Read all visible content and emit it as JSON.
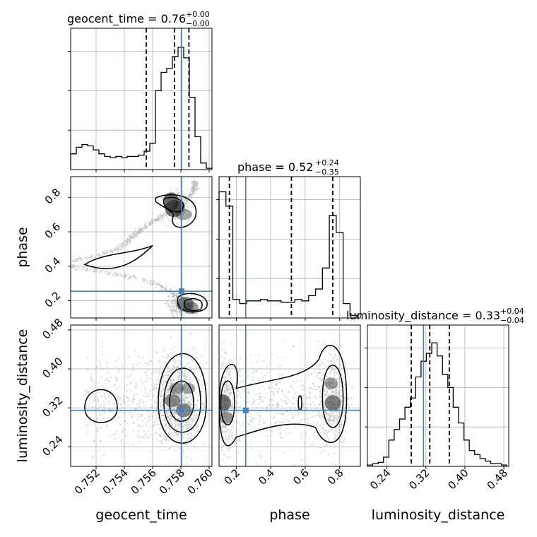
{
  "chart_data": {
    "type": "corner",
    "parameters": [
      {
        "key": "geocent_time",
        "label": "geocent_time",
        "range": [
          0.7502,
          0.7602
        ],
        "ticks": [
          0.752,
          0.754,
          0.756,
          0.758,
          0.76
        ],
        "tick_labels": [
          "0.752",
          "0.754",
          "0.756",
          "0.758",
          "0.760"
        ]
      },
      {
        "key": "phase",
        "label": "phase",
        "range": [
          0.1,
          0.92
        ],
        "ticks": [
          0.2,
          0.4,
          0.6,
          0.8
        ],
        "tick_labels": [
          "0.2",
          "0.4",
          "0.6",
          "0.8"
        ]
      },
      {
        "key": "luminosity_distance",
        "label": "luminosity_distance",
        "range": [
          0.2,
          0.49
        ],
        "ticks": [
          0.24,
          0.32,
          0.4,
          0.48
        ],
        "tick_labels": [
          "0.24",
          "0.32",
          "0.40",
          "0.48"
        ]
      }
    ],
    "titles": [
      {
        "param": "geocent_time",
        "text": "geocent_time = 0.76",
        "sup": "+0.00",
        "sub": "−0.00"
      },
      {
        "param": "phase",
        "text": "phase = 0.52",
        "sup": "+0.24",
        "sub": "−0.35"
      },
      {
        "param": "luminosity_distance",
        "text": "luminosity_distance = 0.33",
        "sup": "+0.04",
        "sub": "−0.04"
      }
    ],
    "truths": {
      "geocent_time": 0.75805,
      "phase": 0.255,
      "luminosity_distance": 0.315
    },
    "quantiles": {
      "geocent_time": [
        0.75555,
        0.75755,
        0.75857
      ],
      "phase": [
        0.16,
        0.52,
        0.76
      ],
      "luminosity_distance": [
        0.29,
        0.328,
        0.368
      ]
    },
    "hist1d": {
      "geocent_time": {
        "edges": [
          0.7502,
          0.7506,
          0.751,
          0.7514,
          0.7518,
          0.7522,
          0.7526,
          0.753,
          0.7534,
          0.7538,
          0.7542,
          0.7546,
          0.755,
          0.7554,
          0.7558,
          0.7562,
          0.7566,
          0.757,
          0.7574,
          0.7578,
          0.7582,
          0.7586,
          0.759,
          0.7594,
          0.7598,
          0.7602
        ],
        "counts": [
          0.12,
          0.17,
          0.19,
          0.18,
          0.15,
          0.12,
          0.1,
          0.09,
          0.1,
          0.09,
          0.1,
          0.1,
          0.11,
          0.14,
          0.2,
          0.6,
          0.74,
          0.77,
          0.86,
          0.93,
          0.85,
          0.55,
          0.25,
          0.05,
          0.01
        ]
      },
      "phase": {
        "edges": [
          0.1,
          0.14,
          0.18,
          0.22,
          0.26,
          0.3,
          0.34,
          0.38,
          0.42,
          0.46,
          0.5,
          0.54,
          0.58,
          0.62,
          0.66,
          0.7,
          0.74,
          0.78,
          0.82,
          0.86,
          0.9
        ],
        "counts": [
          0.96,
          0.85,
          0.14,
          0.11,
          0.13,
          0.13,
          0.14,
          0.13,
          0.13,
          0.12,
          0.12,
          0.14,
          0.13,
          0.17,
          0.22,
          0.38,
          0.78,
          0.65,
          0.11,
          0.02
        ]
      },
      "luminosity_distance": {
        "edges": [
          0.2,
          0.211,
          0.222,
          0.233,
          0.244,
          0.255,
          0.266,
          0.277,
          0.288,
          0.299,
          0.31,
          0.321,
          0.332,
          0.343,
          0.354,
          0.365,
          0.376,
          0.387,
          0.398,
          0.409,
          0.42,
          0.431,
          0.442,
          0.453,
          0.464,
          0.475,
          0.486
        ],
        "counts": [
          0.01,
          0.02,
          0.03,
          0.07,
          0.2,
          0.28,
          0.36,
          0.45,
          0.52,
          0.68,
          0.8,
          0.86,
          0.94,
          0.84,
          0.7,
          0.6,
          0.45,
          0.33,
          0.2,
          0.12,
          0.09,
          0.06,
          0.04,
          0.02,
          0.02,
          0.01
        ]
      }
    },
    "density_blobs": {
      "phase_vs_geocent_time": [
        {
          "x": 0.7573,
          "y": 0.775,
          "w": 0.5,
          "h": 1
        },
        {
          "x": 0.75752,
          "y": 0.735,
          "w": 0.7,
          "h": 0.9
        },
        {
          "x": 0.75785,
          "y": 0.745,
          "w": 0.3,
          "h": 0.5
        },
        {
          "x": 0.7582,
          "y": 0.7,
          "w": 0.6,
          "h": 0.35
        },
        {
          "x": 0.7583,
          "y": 0.18,
          "w": 0.6,
          "h": 0.7
        },
        {
          "x": 0.7587,
          "y": 0.16,
          "w": 0.5,
          "h": 0.5
        }
      ],
      "luminosity_distance_vs_geocent_time": [
        {
          "x": 0.7574,
          "y": 0.335,
          "w": 0.55,
          "h": 0.55
        },
        {
          "x": 0.7582,
          "y": 0.315,
          "w": 0.5,
          "h": 0.6
        },
        {
          "x": 0.7577,
          "y": 0.36,
          "w": 0.4,
          "h": 0.4
        },
        {
          "x": 0.7585,
          "y": 0.36,
          "w": 0.4,
          "h": 0.35
        }
      ],
      "luminosity_distance_vs_phase": [
        {
          "x": 0.12,
          "y": 0.33,
          "w": 0.6,
          "h": 0.9
        },
        {
          "x": 0.76,
          "y": 0.33,
          "w": 0.55,
          "h": 0.75
        },
        {
          "x": 0.75,
          "y": 0.37,
          "w": 0.35,
          "h": 0.4
        },
        {
          "x": 0.14,
          "y": 0.3,
          "w": 0.45,
          "h": 0.45
        }
      ]
    },
    "colors": {
      "truth": "#4682b4",
      "line": "#000000",
      "grid": "#b0b0b0",
      "scatter": "#bbbbbb"
    }
  }
}
